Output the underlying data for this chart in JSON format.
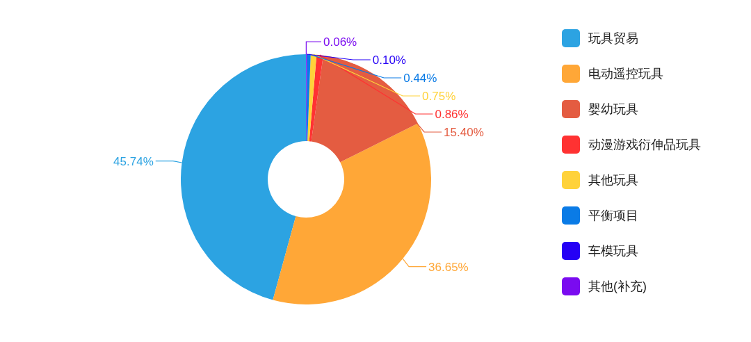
{
  "chart_data": {
    "type": "donut",
    "categories": [
      "玩具贸易",
      "电动遥控玩具",
      "婴幼玩具",
      "动漫游戏衍伸品玩具",
      "其他玩具",
      "平衡项目",
      "车模玩具",
      "其他(补充)"
    ],
    "values": [
      45.74,
      36.65,
      15.4,
      0.86,
      0.75,
      0.44,
      0.1,
      0.06
    ],
    "colors": [
      "#2ca3e2",
      "#ffa737",
      "#e45c41",
      "#ff3232",
      "#ffd23a",
      "#0a7be6",
      "#2500f5",
      "#7a0bf0"
    ],
    "value_labels": [
      "45.74%",
      "36.65%",
      "15.40%",
      "0.86%",
      "0.75%",
      "0.44%",
      "0.10%",
      "0.06%"
    ],
    "legend": "right"
  }
}
